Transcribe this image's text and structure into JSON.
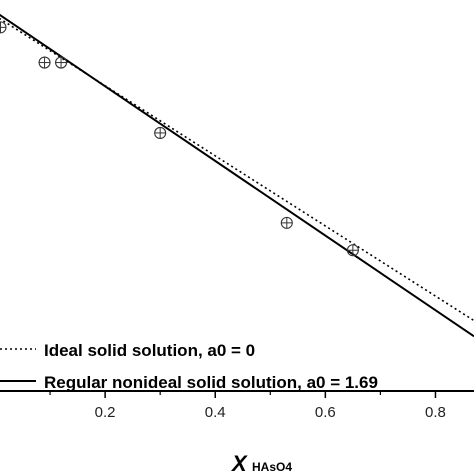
{
  "chart_data": {
    "type": "line",
    "xlabel_main": "X",
    "xlabel_sub": "HAsO4",
    "ylabel": "",
    "title": "",
    "xlim": [
      0.0,
      0.87
    ],
    "ylim": [
      0.0,
      1.0
    ],
    "x_ticks": [
      0.2,
      0.4,
      0.6,
      0.8
    ],
    "x_tick_labels": [
      "0.2",
      "0.4",
      "0.6",
      "0.8"
    ],
    "y_tick_labels_visible": false,
    "grid": false,
    "legend_position": "bottom-left",
    "series": [
      {
        "name": "Ideal solid solution, a0 = 0",
        "style": "dotted",
        "color": "#000000",
        "x": [
          0.0,
          0.87
        ],
        "y": [
          0.96,
          0.18
        ]
      },
      {
        "name": "Regular nonideal solid solution, a0 = 1.69",
        "style": "solid",
        "color": "#000000",
        "x": [
          0.0,
          0.87
        ],
        "y": [
          0.97,
          0.14
        ]
      }
    ],
    "points": {
      "marker": "circle-plus",
      "x": [
        0.01,
        0.09,
        0.12,
        0.3,
        0.53,
        0.65
      ],
      "y": [
        0.93,
        0.84,
        0.84,
        0.66,
        0.43,
        0.36
      ]
    }
  }
}
